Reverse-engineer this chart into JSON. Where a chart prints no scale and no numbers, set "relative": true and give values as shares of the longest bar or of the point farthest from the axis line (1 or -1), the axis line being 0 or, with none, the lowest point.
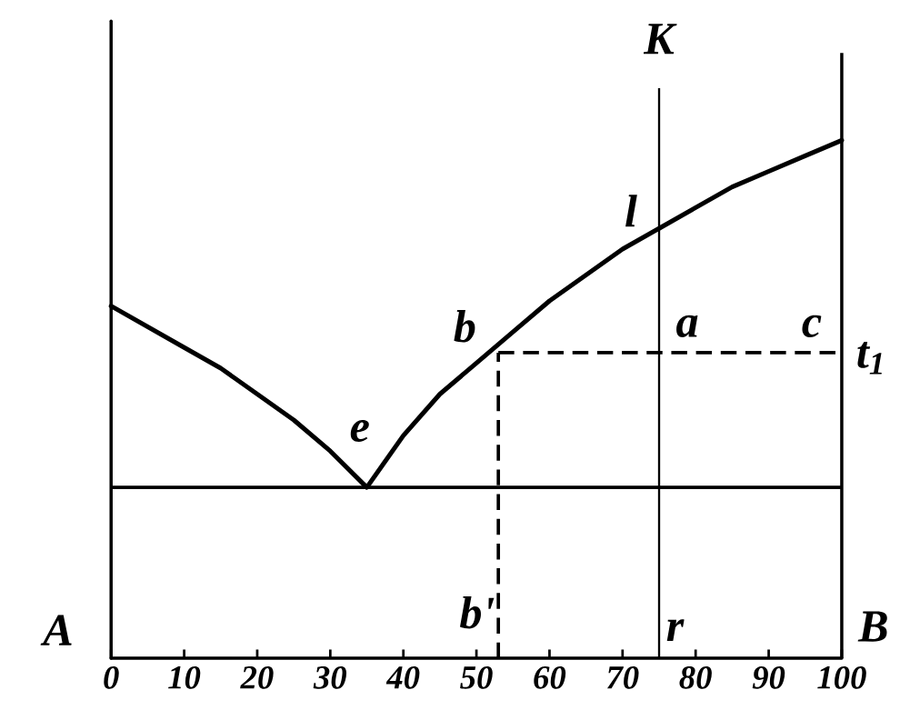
{
  "chart_data": {
    "type": "line",
    "relative": true,
    "line_style": "solid",
    "x": [
      0,
      5,
      10,
      15,
      20,
      25,
      30,
      35,
      40,
      45,
      50,
      55,
      60,
      65,
      70,
      75,
      80,
      85,
      90,
      95,
      100
    ],
    "series": [
      {
        "color": "#000000",
        "values": [
          0.68,
          0.64,
          0.6,
          0.56,
          0.51,
          0.46,
          0.4,
          0.33,
          0.43,
          0.51,
          0.57,
          0.63,
          0.69,
          0.74,
          0.79,
          0.83,
          0.87,
          0.91,
          0.94,
          0.97,
          1.0
        ]
      }
    ],
    "xlim": [
      0,
      100
    ],
    "xticks": [
      0,
      10,
      20,
      30,
      40,
      50,
      60,
      70,
      80,
      90,
      100
    ],
    "tick_labels": "x",
    "ref_lines": [
      {
        "axis": "x",
        "value": 75,
        "label": "K",
        "color": "#000000"
      },
      {
        "axis": "x",
        "value": 100,
        "color": "#000000"
      },
      {
        "axis": "y",
        "value": 0.33,
        "color": "#000000"
      },
      {
        "axis": "y",
        "value": 0.59,
        "label": "t$_{1}$",
        "color": "#000000",
        "line_style": "dashed"
      },
      {
        "axis": "x",
        "value": 53,
        "label": "b'",
        "color": "#000000",
        "line_style": "dashed"
      }
    ],
    "annotations": [
      "A",
      "B",
      {
        "text": "e",
        "x": 35,
        "y": 0.33
      },
      {
        "text": "b",
        "x": 53,
        "y": 0.59
      },
      {
        "text": "l",
        "x": 75,
        "y": 0.83
      },
      {
        "text": "a",
        "x": 75,
        "y": 0.59
      },
      {
        "text": "c",
        "x": 100,
        "y": 0.59
      },
      {
        "text": "r",
        "x": 75,
        "y": 0
      }
    ]
  }
}
